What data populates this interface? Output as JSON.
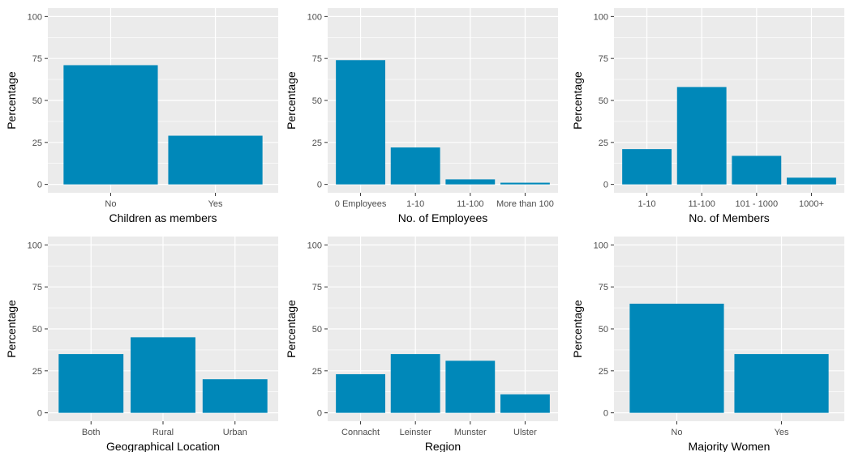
{
  "style": {
    "panel_bg": "#ebebeb",
    "grid_major": "#ffffff",
    "bar_color": "#0088b9",
    "tick_text": "#4d4d4d",
    "title_text": "#000000"
  },
  "chart_data": [
    {
      "type": "bar",
      "categories": [
        "No",
        "Yes"
      ],
      "values": [
        71,
        29
      ],
      "xlabel": "Children as members",
      "ylabel": "Percentage",
      "ylim": [
        0,
        100
      ],
      "yticks": [
        0,
        25,
        50,
        75,
        100
      ],
      "grid": true
    },
    {
      "type": "bar",
      "categories": [
        "0 Employees",
        "1-10",
        "11-100",
        "More than 100"
      ],
      "values": [
        74,
        22,
        3,
        1
      ],
      "xlabel": "No. of Employees",
      "ylabel": "Percentage",
      "ylim": [
        0,
        100
      ],
      "yticks": [
        0,
        25,
        50,
        75,
        100
      ],
      "grid": true
    },
    {
      "type": "bar",
      "categories": [
        "1-10",
        "11-100",
        "101 - 1000",
        "1000+"
      ],
      "values": [
        21,
        58,
        17,
        4
      ],
      "xlabel": "No. of Members",
      "ylabel": "Percentage",
      "ylim": [
        0,
        100
      ],
      "yticks": [
        0,
        25,
        50,
        75,
        100
      ],
      "grid": true
    },
    {
      "type": "bar",
      "categories": [
        "Both",
        "Rural",
        "Urban"
      ],
      "values": [
        35,
        45,
        20
      ],
      "xlabel": "Geographical Location",
      "ylabel": "Percentage",
      "ylim": [
        0,
        100
      ],
      "yticks": [
        0,
        25,
        50,
        75,
        100
      ],
      "grid": true
    },
    {
      "type": "bar",
      "categories": [
        "Connacht",
        "Leinster",
        "Munster",
        "Ulster"
      ],
      "values": [
        23,
        35,
        31,
        11
      ],
      "xlabel": "Region",
      "ylabel": "Percentage",
      "ylim": [
        0,
        100
      ],
      "yticks": [
        0,
        25,
        50,
        75,
        100
      ],
      "grid": true
    },
    {
      "type": "bar",
      "categories": [
        "No",
        "Yes"
      ],
      "values": [
        65,
        35
      ],
      "xlabel": "Majority Women",
      "ylabel": "Percentage",
      "ylim": [
        0,
        100
      ],
      "yticks": [
        0,
        25,
        50,
        75,
        100
      ],
      "grid": true
    }
  ]
}
